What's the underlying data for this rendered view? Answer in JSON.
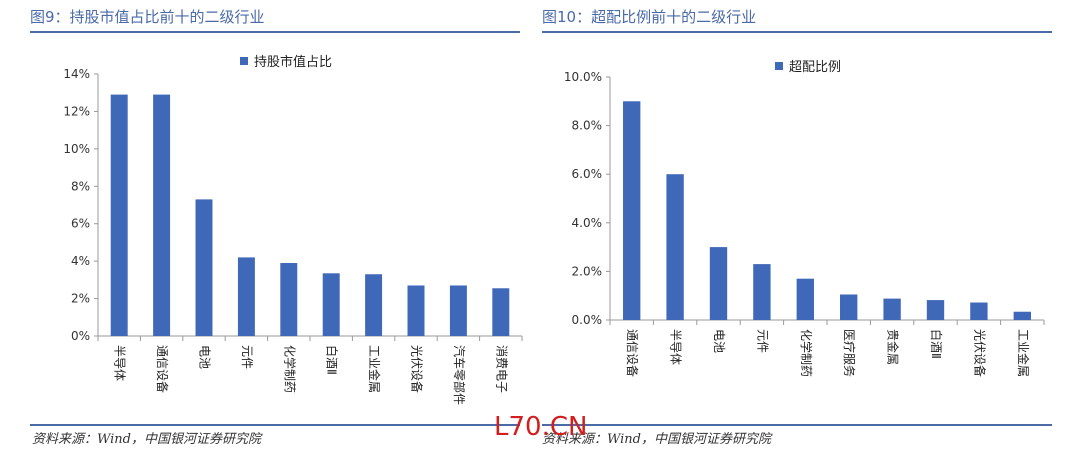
{
  "left": {
    "title": "图9：持股市值占比前十的二级行业",
    "source": "资料来源：Wind，中国银河证券研究院"
  },
  "right": {
    "title": "图10：超配比例前十的二级行业",
    "source": "资料来源：Wind，中国银河证券研究院"
  },
  "watermark": "L70.CN",
  "colors": {
    "bar": "#4068b8",
    "accent": "#4a6aa8",
    "axis": "#999999"
  },
  "chart_data": [
    {
      "type": "bar",
      "categories": [
        "半导体",
        "通信设备",
        "电池",
        "元件",
        "化学制药",
        "白酒Ⅱ",
        "工业金属",
        "光伏设备",
        "汽车零部件",
        "消费电子"
      ],
      "series": [
        {
          "name": "持股市值占比",
          "values": [
            12.9,
            12.9,
            7.3,
            4.2,
            3.9,
            3.35,
            3.3,
            2.7,
            2.7,
            2.55
          ]
        }
      ],
      "yticks": [
        "0%",
        "2%",
        "4%",
        "6%",
        "8%",
        "10%",
        "12%",
        "14%"
      ],
      "ylim": [
        0,
        14
      ],
      "ystep": 2,
      "legend": "top"
    },
    {
      "type": "bar",
      "categories": [
        "通信设备",
        "半导体",
        "电池",
        "元件",
        "化学制药",
        "医疗服务",
        "贵金属",
        "白酒Ⅱ",
        "光伏设备",
        "工业金属"
      ],
      "series": [
        {
          "name": "超配比例",
          "values": [
            9.0,
            6.0,
            3.0,
            2.3,
            1.7,
            1.05,
            0.88,
            0.82,
            0.72,
            0.34
          ]
        }
      ],
      "yticks": [
        "0.0%",
        "2.0%",
        "4.0%",
        "6.0%",
        "8.0%",
        "10.0%"
      ],
      "ylim": [
        0,
        10
      ],
      "ystep": 2,
      "legend": "top"
    }
  ]
}
